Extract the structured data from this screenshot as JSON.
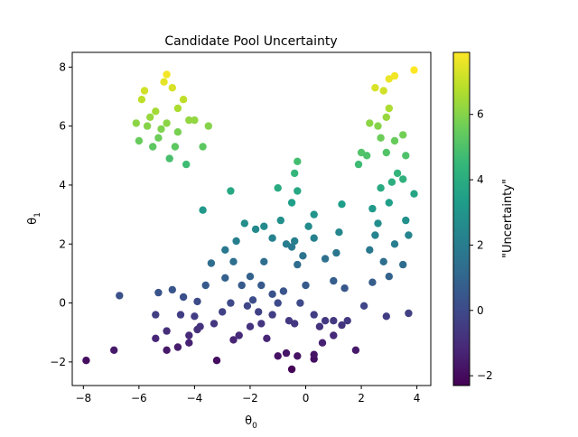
{
  "chart_data": {
    "type": "scatter",
    "title": "Candidate Pool Uncertainty",
    "xlabel_base": "θ",
    "xlabel_sub": "0",
    "ylabel_base": "θ",
    "ylabel_sub": "1",
    "xlim": [
      -8.4,
      4.5
    ],
    "ylim": [
      -2.8,
      8.5
    ],
    "xticks": [
      -8,
      -6,
      -4,
      -2,
      0,
      2,
      4
    ],
    "yticks": [
      -2,
      0,
      2,
      4,
      6,
      8
    ],
    "grid": false,
    "colorbar": {
      "label": "\"Uncertainty\"",
      "colormap": "viridis",
      "range": [
        -2.3,
        7.9
      ],
      "ticks": [
        -2,
        0,
        2,
        4,
        6
      ]
    },
    "colormap_stops": [
      "#440154",
      "#482878",
      "#3e4989",
      "#31688e",
      "#26828e",
      "#1f9e89",
      "#35b779",
      "#6ece58",
      "#b5de2b",
      "#fde725"
    ],
    "points": [
      [
        -7.9,
        -1.95
      ],
      [
        -6.9,
        -1.6
      ],
      [
        -6.7,
        0.25
      ],
      [
        -5.4,
        -1.2
      ],
      [
        -5.0,
        -1.6
      ],
      [
        -5.0,
        -0.95
      ],
      [
        -4.6,
        -1.5
      ],
      [
        -4.2,
        -1.35
      ],
      [
        -4.2,
        -1.1
      ],
      [
        -3.9,
        -0.9
      ],
      [
        -3.2,
        -1.95
      ],
      [
        -3.8,
        -0.8
      ],
      [
        -3.3,
        -0.7
      ],
      [
        -3.0,
        -0.3
      ],
      [
        -2.6,
        -1.25
      ],
      [
        -2.4,
        -1.1
      ],
      [
        -2.0,
        -0.8
      ],
      [
        -1.6,
        -0.7
      ],
      [
        -1.4,
        -1.2
      ],
      [
        -1.0,
        -1.8
      ],
      [
        -0.7,
        -1.7
      ],
      [
        -0.5,
        -2.25
      ],
      [
        -0.3,
        -1.8
      ],
      [
        0.3,
        -1.9
      ],
      [
        0.3,
        -1.75
      ],
      [
        0.6,
        -1.35
      ],
      [
        1.0,
        -1.1
      ],
      [
        1.8,
        -1.6
      ],
      [
        -5.4,
        -0.4
      ],
      [
        -5.3,
        0.35
      ],
      [
        -4.8,
        0.45
      ],
      [
        -4.4,
        0.2
      ],
      [
        -4.5,
        -0.4
      ],
      [
        -4.0,
        -0.45
      ],
      [
        -3.6,
        0.6
      ],
      [
        -3.9,
        0.05
      ],
      [
        -3.4,
        1.35
      ],
      [
        -2.9,
        0.85
      ],
      [
        -2.7,
        0.0
      ],
      [
        -2.1,
        -0.1
      ],
      [
        -1.9,
        0.1
      ],
      [
        -1.7,
        -0.3
      ],
      [
        -1.6,
        0.6
      ],
      [
        -1.2,
        -0.4
      ],
      [
        -1.0,
        0.0
      ],
      [
        -0.6,
        -0.6
      ],
      [
        -0.4,
        -0.7
      ],
      [
        -0.2,
        0.0
      ],
      [
        0.3,
        -0.4
      ],
      [
        0.5,
        -0.8
      ],
      [
        0.7,
        -0.6
      ],
      [
        1.0,
        -0.6
      ],
      [
        1.3,
        -0.75
      ],
      [
        1.5,
        -0.6
      ],
      [
        1.0,
        0.75
      ],
      [
        1.4,
        0.5
      ],
      [
        2.4,
        0.7
      ],
      [
        2.1,
        -0.1
      ],
      [
        3.7,
        -0.35
      ],
      [
        2.9,
        -0.45
      ],
      [
        -2.9,
        1.8
      ],
      [
        -2.6,
        1.4
      ],
      [
        -2.3,
        0.6
      ],
      [
        -2.0,
        0.9
      ],
      [
        -1.5,
        1.4
      ],
      [
        -1.2,
        0.3
      ],
      [
        -0.8,
        0.4
      ],
      [
        -0.5,
        1.9
      ],
      [
        -0.3,
        1.3
      ],
      [
        0.0,
        0.6
      ],
      [
        0.3,
        2.2
      ],
      [
        0.7,
        1.5
      ],
      [
        -2.5,
        2.1
      ],
      [
        -2.2,
        2.7
      ],
      [
        -1.8,
        2.5
      ],
      [
        -1.5,
        2.6
      ],
      [
        -1.2,
        2.2
      ],
      [
        -0.9,
        2.8
      ],
      [
        -0.7,
        2.0
      ],
      [
        -0.4,
        2.1
      ],
      [
        -0.1,
        1.6
      ],
      [
        0.1,
        2.6
      ],
      [
        0.3,
        3.0
      ],
      [
        -0.5,
        3.4
      ],
      [
        -0.3,
        3.8
      ],
      [
        -0.4,
        4.4
      ],
      [
        -0.3,
        4.8
      ],
      [
        -1.0,
        3.9
      ],
      [
        -2.7,
        3.8
      ],
      [
        -3.7,
        3.15
      ],
      [
        1.3,
        3.35
      ],
      [
        1.2,
        2.4
      ],
      [
        1.1,
        1.7
      ],
      [
        2.3,
        1.8
      ],
      [
        2.5,
        2.3
      ],
      [
        2.4,
        3.2
      ],
      [
        2.6,
        2.7
      ],
      [
        2.8,
        1.4
      ],
      [
        3.0,
        0.9
      ],
      [
        3.2,
        2.0
      ],
      [
        3.5,
        1.3
      ],
      [
        3.6,
        2.8
      ],
      [
        3.7,
        2.3
      ],
      [
        3.0,
        3.4
      ],
      [
        2.7,
        3.9
      ],
      [
        3.1,
        4.1
      ],
      [
        3.5,
        4.2
      ],
      [
        3.9,
        3.7
      ],
      [
        3.3,
        4.4
      ],
      [
        2.9,
        5.1
      ],
      [
        3.6,
        5.0
      ],
      [
        3.2,
        5.5
      ],
      [
        3.5,
        5.7
      ],
      [
        2.7,
        5.6
      ],
      [
        2.0,
        5.1
      ],
      [
        1.9,
        4.7
      ],
      [
        2.3,
        6.1
      ],
      [
        2.9,
        6.3
      ],
      [
        3.0,
        6.6
      ],
      [
        2.8,
        7.2
      ],
      [
        2.5,
        7.3
      ],
      [
        3.0,
        7.6
      ],
      [
        3.2,
        7.7
      ],
      [
        3.9,
        7.9
      ],
      [
        2.6,
        6.0
      ],
      [
        2.2,
        5.0
      ],
      [
        -6.1,
        6.1
      ],
      [
        -5.9,
        6.9
      ],
      [
        -5.6,
        6.3
      ],
      [
        -5.4,
        6.5
      ],
      [
        -5.3,
        5.6
      ],
      [
        -5.1,
        7.5
      ],
      [
        -5.0,
        7.75
      ],
      [
        -4.8,
        7.3
      ],
      [
        -4.6,
        6.6
      ],
      [
        -4.4,
        6.9
      ],
      [
        -4.2,
        6.2
      ],
      [
        -3.7,
        5.3
      ],
      [
        -3.5,
        6.0
      ],
      [
        -4.3,
        4.7
      ],
      [
        -4.7,
        5.3
      ],
      [
        -4.9,
        4.9
      ],
      [
        -5.7,
        6.0
      ],
      [
        -5.2,
        5.9
      ],
      [
        -5.5,
        5.3
      ],
      [
        -6.0,
        5.5
      ],
      [
        -5.8,
        7.2
      ],
      [
        -5.0,
        6.1
      ],
      [
        -4.6,
        5.8
      ],
      [
        -4.0,
        6.2
      ]
    ]
  }
}
